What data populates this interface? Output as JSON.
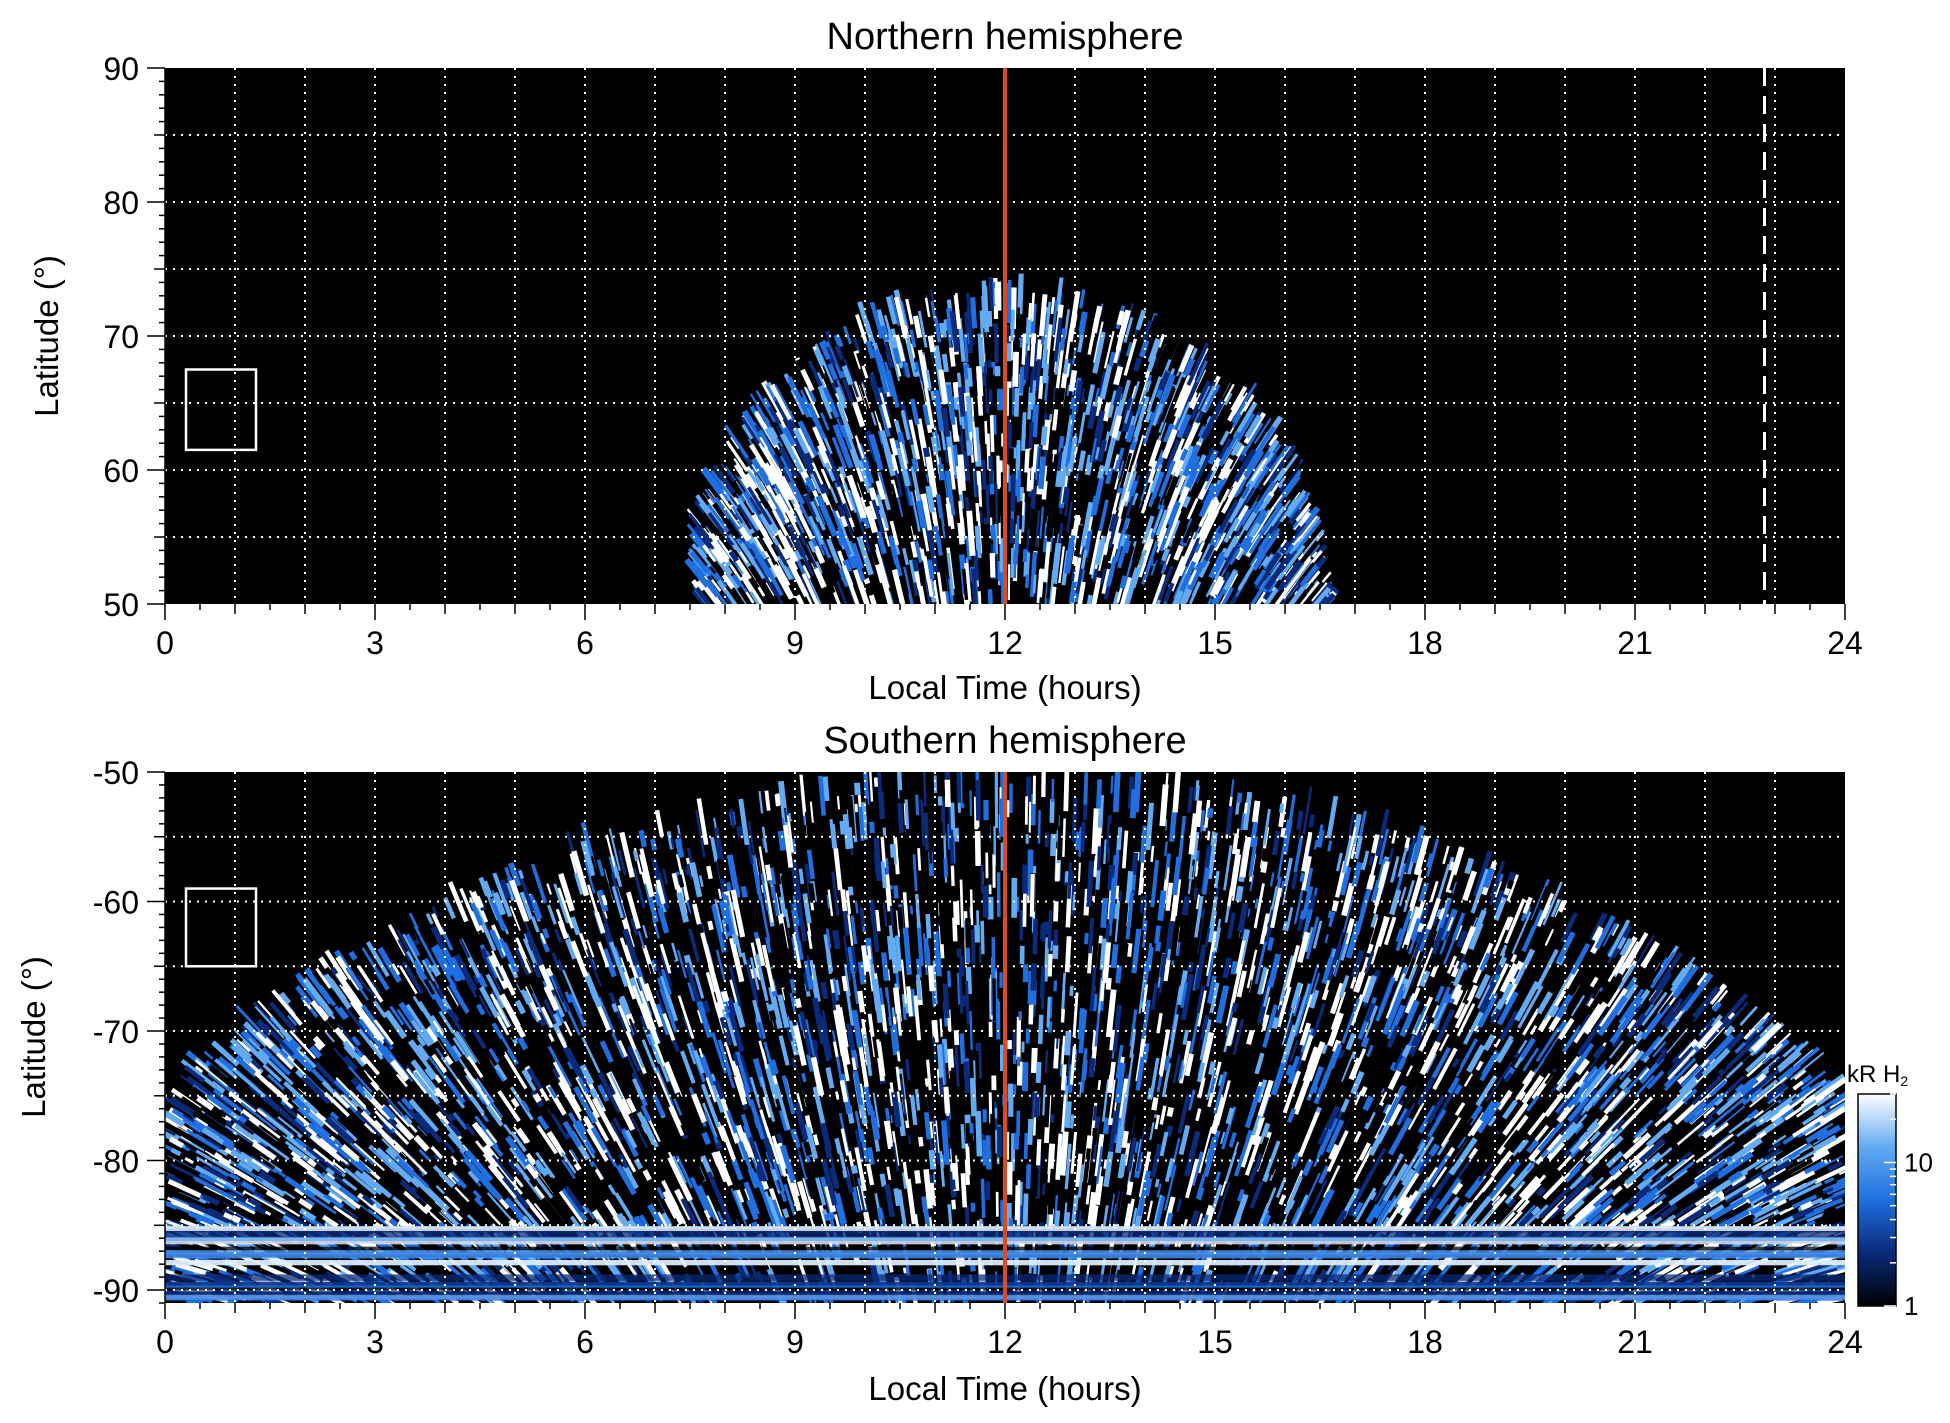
{
  "chart_data": [
    {
      "type": "heatmap",
      "title": "Northern hemisphere",
      "xlabel": "Local Time (hours)",
      "ylabel": "Latitude (°)",
      "xlim": [
        0,
        24
      ],
      "ylim": [
        50,
        90
      ],
      "xticks": [
        0,
        3,
        6,
        9,
        12,
        15,
        18,
        21,
        24
      ],
      "yticks": [
        50,
        60,
        70,
        80,
        90
      ],
      "grid": true,
      "background_color": "#000000",
      "emission_region": {
        "lt_range": [
          7.6,
          16.6
        ],
        "peak_lt": 12,
        "peak_latitude": 73.5
      },
      "reference_lines": [
        {
          "lt": 12,
          "style": "solid",
          "color": "#e04a1a"
        },
        {
          "lt": 22.85,
          "style": "dashed",
          "color": "#ffffff"
        }
      ],
      "box": {
        "lt": [
          0.3,
          1.3
        ],
        "latitude": [
          61.5,
          67.5
        ],
        "color": "#ffffff"
      }
    },
    {
      "type": "heatmap",
      "title": "Southern hemisphere",
      "xlabel": "Local Time (hours)",
      "ylabel": "Latitude (°)",
      "xlim": [
        0,
        24
      ],
      "ylim": [
        -91,
        -50
      ],
      "xticks": [
        0,
        3,
        6,
        9,
        12,
        15,
        18,
        21,
        24
      ],
      "yticks": [
        -90,
        -80,
        -70,
        -60,
        -50
      ],
      "grid": true,
      "background_color": "#000000",
      "emission_region": {
        "lt_range": [
          0,
          24
        ],
        "edge_latitude_min": -75,
        "peak_lt": 12,
        "peak_latitude": -50
      },
      "reference_lines": [
        {
          "lt": 12,
          "style": "solid",
          "color": "#e04a1a"
        }
      ],
      "box": {
        "lt": [
          0.3,
          1.3
        ],
        "latitude": [
          -65,
          -59
        ],
        "color": "#ffffff"
      },
      "colorbar": {
        "label_prefix": "kR H",
        "label_subscript": "2",
        "scale": "log",
        "range": [
          1,
          30
        ],
        "ticks": [
          1,
          10
        ],
        "colors": [
          "#000000",
          "#0a2a7a",
          "#1f6fe0",
          "#62aaf2",
          "#ffffff"
        ]
      }
    }
  ]
}
